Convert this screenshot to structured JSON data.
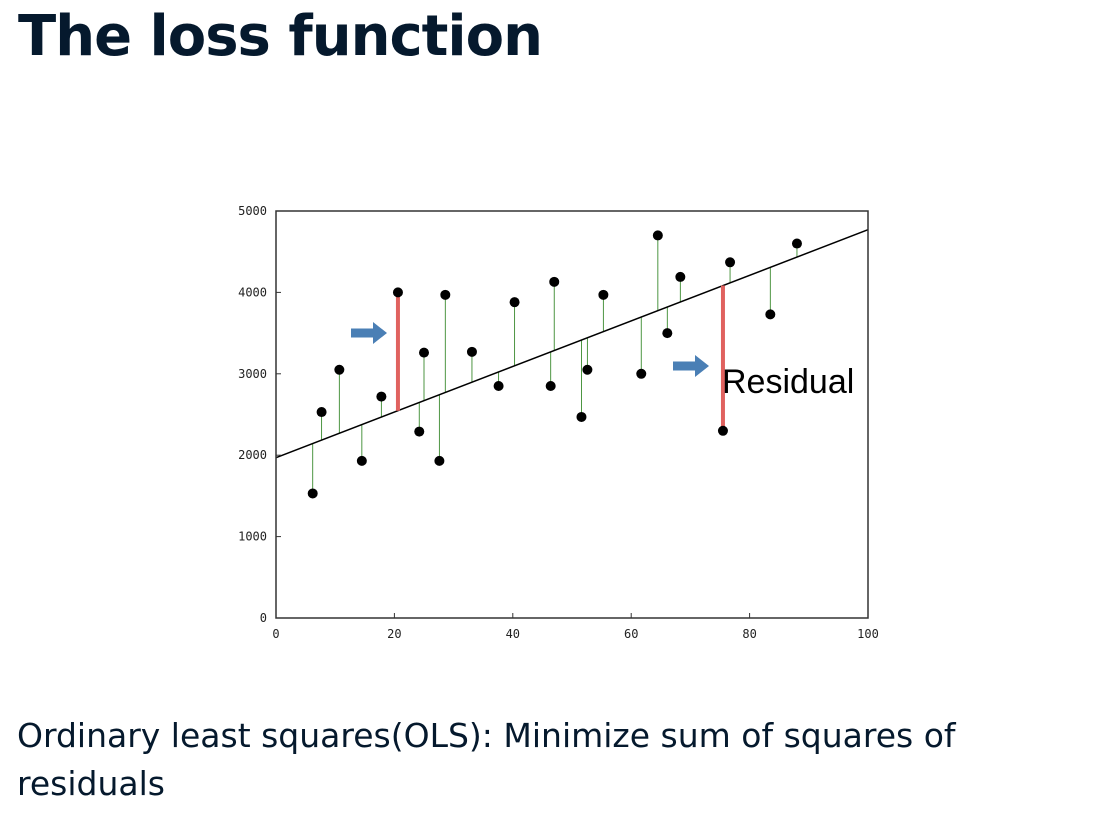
{
  "slide": {
    "title": "The loss function",
    "caption": "Ordinary least squares(OLS): Minimize sum of squares of residuals"
  },
  "chart_data": {
    "type": "scatter",
    "xlim": [
      0,
      100
    ],
    "ylim": [
      0,
      5000
    ],
    "x_ticks": [
      "0",
      "20",
      "40",
      "60",
      "80",
      "100"
    ],
    "y_ticks": [
      "0",
      "1000",
      "2000",
      "3000",
      "4000",
      "5000"
    ],
    "grid": false,
    "regression_line": {
      "intercept": 1970,
      "slope": 28
    },
    "points": [
      {
        "x": 6.2,
        "y": 1530
      },
      {
        "x": 7.7,
        "y": 2530
      },
      {
        "x": 10.7,
        "y": 3050
      },
      {
        "x": 14.5,
        "y": 1930
      },
      {
        "x": 17.8,
        "y": 2720
      },
      {
        "x": 20.6,
        "y": 4000
      },
      {
        "x": 24.2,
        "y": 2290
      },
      {
        "x": 25.0,
        "y": 3260
      },
      {
        "x": 27.6,
        "y": 1930
      },
      {
        "x": 28.6,
        "y": 3970
      },
      {
        "x": 33.1,
        "y": 3270
      },
      {
        "x": 37.6,
        "y": 2850
      },
      {
        "x": 40.3,
        "y": 3880
      },
      {
        "x": 46.4,
        "y": 2850
      },
      {
        "x": 47.0,
        "y": 4130
      },
      {
        "x": 51.6,
        "y": 2470
      },
      {
        "x": 52.6,
        "y": 3050
      },
      {
        "x": 55.3,
        "y": 3970
      },
      {
        "x": 61.7,
        "y": 3000
      },
      {
        "x": 64.5,
        "y": 4700
      },
      {
        "x": 66.1,
        "y": 3500
      },
      {
        "x": 68.3,
        "y": 4190
      },
      {
        "x": 75.5,
        "y": 2300
      },
      {
        "x": 76.7,
        "y": 4370
      },
      {
        "x": 83.5,
        "y": 3730
      },
      {
        "x": 88.0,
        "y": 4600
      }
    ],
    "highlighted_residual_points": [
      5,
      22
    ],
    "annotation": "Residual",
    "colors": {
      "point": "#000000",
      "line": "#000000",
      "residual": "#3a8a2e",
      "highlight_residual": "#e0625f",
      "arrow": "#4a7fb5"
    }
  }
}
